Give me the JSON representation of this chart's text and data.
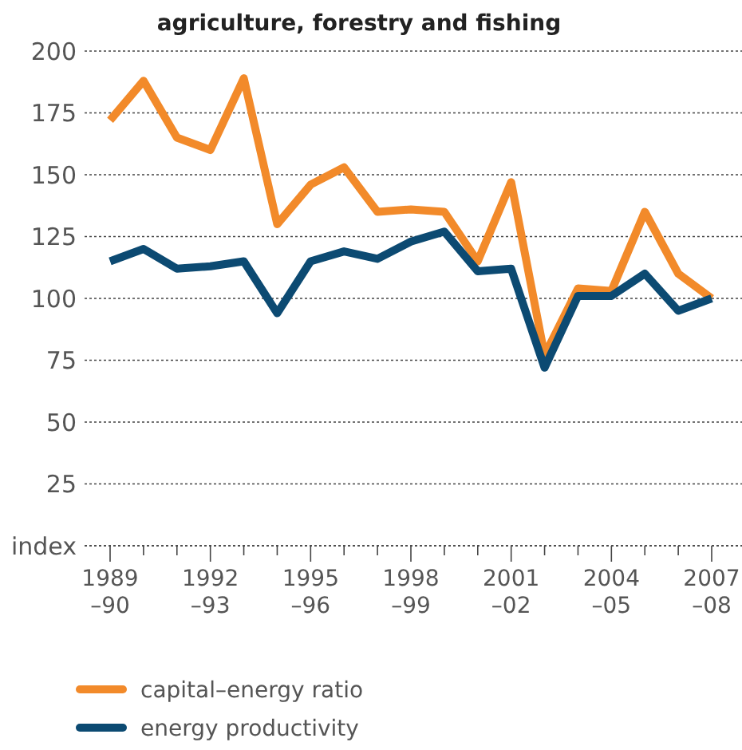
{
  "chart_data": {
    "type": "line",
    "title": "agriculture, forestry and fishing",
    "categories": [
      "1989\n–90",
      null,
      null,
      "1992\n–93",
      null,
      null,
      "1995\n–96",
      null,
      null,
      "1998\n–99",
      null,
      null,
      "2001\n–02",
      null,
      null,
      "2004\n–05",
      null,
      null,
      "2007\n–08"
    ],
    "series": [
      {
        "name": "capital–energy ratio",
        "color": "#f28a2a",
        "values": [
          172,
          188,
          165,
          160,
          189,
          130,
          146,
          153,
          135,
          136,
          135,
          115,
          147,
          77,
          104,
          103,
          135,
          110,
          100
        ]
      },
      {
        "name": "energy productivity",
        "color": "#0c4a72",
        "values": [
          115,
          120,
          112,
          113,
          115,
          94,
          115,
          119,
          116,
          123,
          127,
          111,
          112,
          72,
          101,
          101,
          110,
          95,
          100
        ]
      }
    ],
    "ylim": [
      0,
      200
    ],
    "yticks": [
      {
        "value": 0,
        "label": "index"
      },
      25,
      50,
      75,
      100,
      125,
      150,
      175,
      200
    ],
    "grid": "y",
    "legend": "bottom left",
    "line_style": "solid"
  }
}
